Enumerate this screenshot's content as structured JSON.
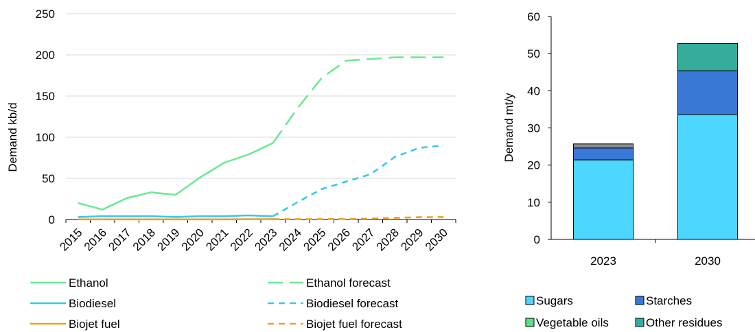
{
  "colors": {
    "ethanol": "#6ee896",
    "biodiesel": "#38c7f0",
    "biojet": "#f0a020",
    "sugars": "#4dd6ff",
    "starches": "#3a78d6",
    "vegetable_oils": "#57e08a",
    "other_residues": "#34ad9c",
    "other": "#8c8c8c"
  },
  "chart_data": [
    {
      "type": "line",
      "ylabel": "Demand kb/d",
      "ylim": [
        0,
        250
      ],
      "yticks": [
        "0",
        "50",
        "100",
        "150",
        "200",
        "250"
      ],
      "x": [
        "2015",
        "2016",
        "2017",
        "2018",
        "2019",
        "2020",
        "2021",
        "2022",
        "2023",
        "2024",
        "2025",
        "2026",
        "2027",
        "2028",
        "2029",
        "2030"
      ],
      "series": [
        {
          "name": "Ethanol",
          "dash": "solid",
          "color_key": "ethanol",
          "values": [
            20,
            12,
            26,
            33,
            30,
            51,
            69,
            79,
            93,
            null,
            null,
            null,
            null,
            null,
            null,
            null
          ]
        },
        {
          "name": "Ethanol forecast",
          "dash": "long",
          "color_key": "ethanol",
          "values": [
            null,
            null,
            null,
            null,
            null,
            null,
            null,
            null,
            93,
            135,
            172,
            193,
            195,
            197,
            197,
            197
          ]
        },
        {
          "name": "Biodiesel",
          "dash": "solid",
          "color_key": "biodiesel",
          "values": [
            3,
            4,
            4,
            4,
            3,
            4,
            4,
            5,
            4,
            null,
            null,
            null,
            null,
            null,
            null,
            null
          ]
        },
        {
          "name": "Biodiesel forecast",
          "dash": "short",
          "color_key": "biodiesel",
          "values": [
            null,
            null,
            null,
            null,
            null,
            null,
            null,
            null,
            4,
            21,
            37,
            46,
            55,
            76,
            87,
            90
          ]
        },
        {
          "name": "Biojet fuel",
          "dash": "solid",
          "color_key": "biojet",
          "values": [
            0.2,
            0.2,
            0.2,
            0.2,
            0.2,
            0.2,
            0.2,
            0.3,
            0.5,
            null,
            null,
            null,
            null,
            null,
            null,
            null
          ]
        },
        {
          "name": "Biojet fuel forecast",
          "dash": "short",
          "color_key": "biojet",
          "values": [
            null,
            null,
            null,
            null,
            null,
            null,
            null,
            null,
            0.5,
            0.5,
            0.5,
            0.7,
            1.2,
            2,
            2.8,
            3
          ]
        }
      ],
      "legend": {
        "placement": "bottom",
        "columns": 2
      }
    },
    {
      "type": "bar",
      "stacked": true,
      "ylabel": "Demand mt/y",
      "ylim": [
        0,
        60
      ],
      "yticks": [
        "0",
        "10",
        "20",
        "30",
        "40",
        "50",
        "60"
      ],
      "categories": [
        "2023",
        "2030"
      ],
      "series": [
        {
          "name": "Sugars",
          "color_key": "sugars",
          "values": [
            21.4,
            33.6
          ]
        },
        {
          "name": "Starches",
          "color_key": "starches",
          "values": [
            3.2,
            11.8
          ]
        },
        {
          "name": "Vegetable oils",
          "color_key": "vegetable_oils",
          "values": [
            0,
            0
          ]
        },
        {
          "name": "Other residues",
          "color_key": "other_residues",
          "values": [
            0,
            7.3
          ]
        },
        {
          "name": "",
          "color_key": "other",
          "values": [
            1.1,
            0
          ]
        }
      ],
      "legend": {
        "placement": "bottom",
        "columns": 2,
        "entries": [
          "Sugars",
          "Starches",
          "Vegetable oils",
          "Other residues"
        ]
      }
    }
  ]
}
